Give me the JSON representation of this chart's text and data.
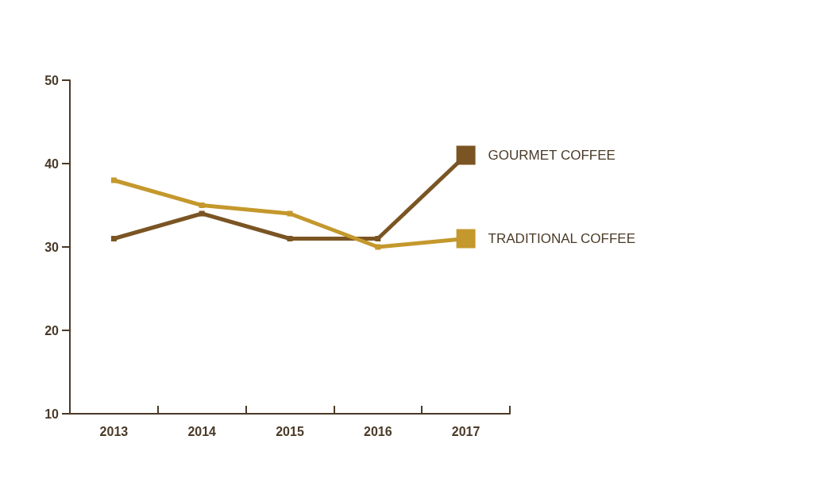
{
  "chart_data": {
    "type": "line",
    "categories": [
      "2013",
      "2014",
      "2015",
      "2016",
      "2017"
    ],
    "series": [
      {
        "name": "GOURMET COFFEE",
        "color": "#7a5523",
        "values": [
          31,
          34,
          31,
          31,
          41
        ]
      },
      {
        "name": "TRADITIONAL COFFEE",
        "color": "#c4982c",
        "values": [
          38,
          35,
          34,
          30,
          31
        ]
      }
    ],
    "ylim": [
      10,
      50
    ],
    "yticks": [
      10,
      20,
      30,
      40,
      50
    ],
    "grid": false,
    "legend": false,
    "marker": "square",
    "line_style": "solid"
  }
}
